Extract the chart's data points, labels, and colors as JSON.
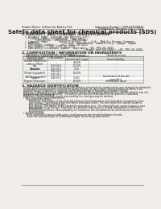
{
  "bg_color": "#f0ede8",
  "page_bg": "#f0ede8",
  "header_left": "Product Name: Lithium Ion Battery Cell",
  "header_right_line1": "Substance Number: 199S-04R-00810",
  "header_right_line2": "Established / Revision: Dec.7.2010",
  "title": "Safety data sheet for chemical products (SDS)",
  "section1_title": "1. PRODUCT AND COMPANY IDENTIFICATION",
  "section1_lines": [
    "  • Product name: Lithium Ion Battery Cell",
    "  • Product code: Cylindrical type cell",
    "        (IHR18650U, IHR18650L, IHR18650A)",
    "  • Company name:      Sanyo Electric Co., Ltd., Mobile Energy Company",
    "  • Address:               2-1-1  Kamikosaka, Sumoto-City, Hyogo, Japan",
    "  • Telephone number:   +81-(799)-26-4111",
    "  • Fax number:  +81-1799-26-4128",
    "  • Emergency telephone number (daytime): +81-799-26-3642",
    "                                       (Night and holiday): +81-799-26-4101"
  ],
  "section2_title": "2. COMPOSITION / INFORMATION ON INGREDIENTS",
  "section2_sub1": "  • Substance or preparation: Preparation",
  "section2_sub2": "  • Information about the chemical nature of product:",
  "table_headers": [
    "Chemical name",
    "CAS number",
    "Concentration /\nConcentration range",
    "Classification and\nhazard labeling"
  ],
  "table_header2": [
    "Several name",
    "",
    "",
    ""
  ],
  "table_rows": [
    [
      "Lithium cobalt oxide\n(LiMn-Co-PBO2)",
      "-",
      "30-60%",
      "-"
    ],
    [
      "Iron",
      "7439-89-6",
      "10-20%",
      "-"
    ],
    [
      "Aluminum",
      "7429-90-5",
      "2-6%",
      "-"
    ],
    [
      "Graphite\n(Mixed in graphite)\n(All-No in graphite)",
      "7782-42-5\n7782-44-2",
      "10-25%",
      "-"
    ],
    [
      "Copper",
      "7440-50-8",
      "5-15%",
      "Sensitization of the skin\ngroup No.2"
    ],
    [
      "Organic electrolyte",
      "-",
      "10-20%",
      "Inflammable liquid"
    ]
  ],
  "section3_title": "3. HAZARDS IDENTIFICATION",
  "section3_para1": [
    "For the battery cell, chemical substances are stored in a hermetically sealed metal case, designed to withstand",
    "temperatures and pressures encountered during normal use. As a result, during normal use, there is no",
    "physical danger of ignition or explosion and thermal danger of hazardous materials leakage.",
    "However, if exposed to a fire, added mechanical shocks, decomposed, when electric current actively may use,",
    "the gas inside cannot be operated. The battery cell case will be breached of fire-particles, hazardous",
    "materials may be released.",
    "Moreover, if heated strongly by the surrounding fire, emit gas may be emitted."
  ],
  "section3_bullet1_title": "  • Most important hazard and effects:",
  "section3_bullet1_lines": [
    "       Human health effects:",
    "          Inhalation: The release of the electrolyte has an anesthesia action and stimulates a respiratory tract.",
    "          Skin contact: The release of the electrolyte stimulates a skin. The electrolyte skin contact causes a",
    "          sore and stimulation on the skin.",
    "          Eye contact: The release of the electrolyte stimulates eyes. The electrolyte eye contact causes a sore",
    "          and stimulation on the eye. Especially, a substance that causes a strong inflammation of the eye is",
    "          considered.",
    "          Environmental effects: Since a battery cell remains in the environment, do not throw out it into the",
    "          environment."
  ],
  "section3_bullet2_title": "  • Specific hazards:",
  "section3_bullet2_lines": [
    "       If the electrolyte contacts with water, it will generate detrimental hydrogen fluoride.",
    "       Since the said electrolyte is inflammable liquid, do not bring close to fire."
  ],
  "text_color": "#1a1a1a",
  "line_color": "#777777",
  "table_header_bg": "#d8d8d0",
  "table_border": "#888888",
  "font_tiny": 2.3,
  "font_small": 2.7,
  "font_section": 3.2,
  "font_title": 5.0
}
